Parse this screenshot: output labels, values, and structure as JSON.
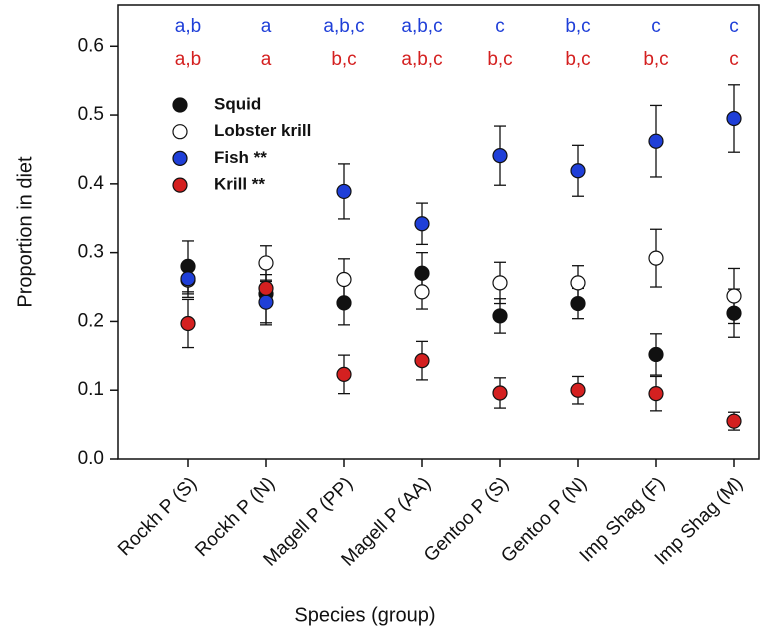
{
  "chart_data": {
    "type": "scatter",
    "xlabel": "Species (group)",
    "ylabel": "Proportion in diet",
    "categories": [
      "Rockh P (S)",
      "Rockh P (N)",
      "Magell P (PP)",
      "Magell P (AA)",
      "Gentoo P (S)",
      "Gentoo P (N)",
      "Imp Shag (F)",
      "Imp Shag (M)"
    ],
    "ylim": [
      0,
      0.66
    ],
    "yticks": [
      {
        "value": 0,
        "label": "0.0"
      },
      0.1,
      0.2,
      0.3,
      0.4,
      0.5,
      0.6
    ],
    "legend": "upper left",
    "series": [
      {
        "name": "Squid",
        "color": "#111111",
        "values": [
          0.28,
          0.24,
          0.227,
          0.27,
          0.208,
          0.226,
          0.152,
          0.212
        ],
        "errors": [
          0.037,
          0.045,
          0.032,
          0.03,
          0.025,
          0.022,
          0.03,
          0.035
        ]
      },
      {
        "name": "Lobster krill",
        "color": "#ffffff",
        "values": [
          0.26,
          0.285,
          0.261,
          0.243,
          0.256,
          0.256,
          0.292,
          0.237
        ],
        "errors": [
          0.025,
          0.025,
          0.03,
          0.025,
          0.03,
          0.025,
          0.042,
          0.04
        ]
      },
      {
        "name": "Fish **",
        "color": "#1f3fd8",
        "values": [
          0.262,
          0.228,
          0.389,
          0.342,
          0.441,
          0.419,
          0.462,
          0.495
        ],
        "errors": [
          0.022,
          0.03,
          0.04,
          0.03,
          0.043,
          0.037,
          0.052,
          0.049
        ]
      },
      {
        "name": "Krill **",
        "color": "#d42020",
        "values": [
          0.197,
          0.248,
          0.123,
          0.143,
          0.096,
          0.1,
          0.095,
          0.055
        ],
        "errors": [
          0.035,
          0.02,
          0.028,
          0.028,
          0.022,
          0.02,
          0.025,
          0.013
        ]
      }
    ],
    "annotations": [
      {
        "color": "#1f3fd8",
        "labels": [
          "a,b",
          "a",
          "a,b,c",
          "a,b,c",
          "c",
          "b,c",
          "c",
          "c"
        ]
      },
      {
        "color": "#d42020",
        "labels": [
          "a,b",
          "a",
          "b,c",
          "a,b,c",
          "b,c",
          "b,c",
          "b,c",
          "c"
        ]
      }
    ]
  }
}
